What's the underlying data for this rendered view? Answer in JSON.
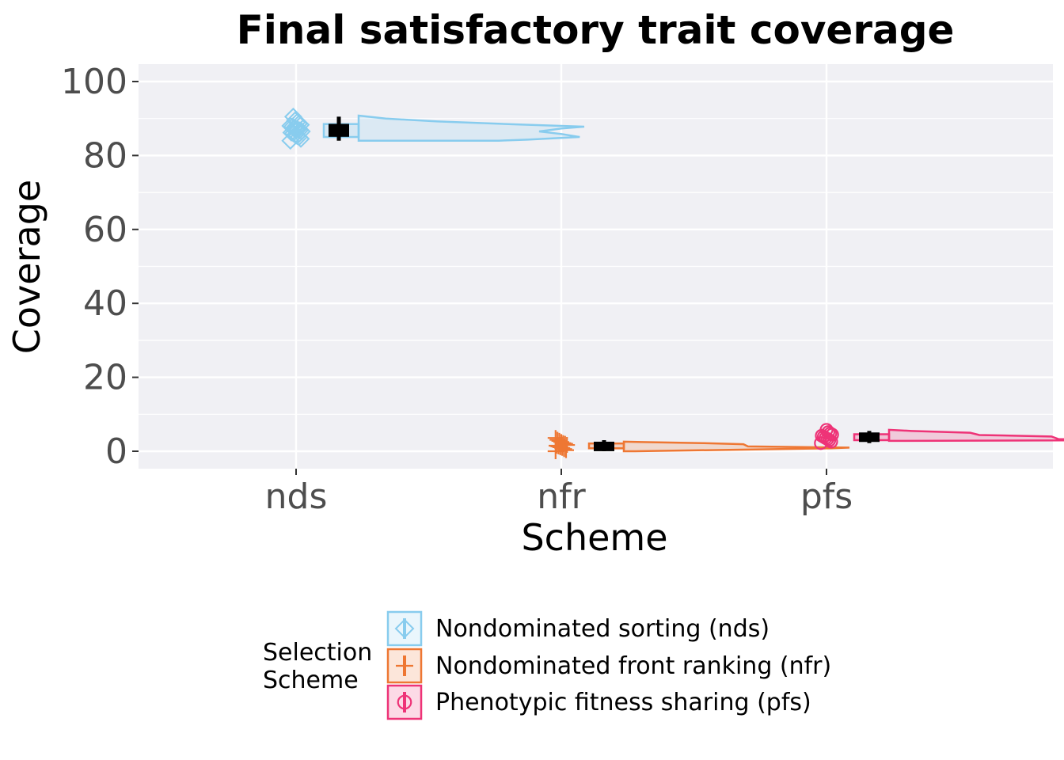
{
  "chart_data": {
    "type": "raincloud",
    "title": "Final satisfactory trait coverage",
    "xlabel": "Scheme",
    "ylabel": "Coverage",
    "categories": [
      "nds",
      "nfr",
      "pfs"
    ],
    "y_ticks": [
      0,
      20,
      40,
      60,
      80,
      100
    ],
    "ylim": [
      -4.5,
      104.5
    ],
    "grid": true,
    "legend_position": "bottom",
    "legend_title_lines": [
      "Selection",
      "Scheme"
    ],
    "series": [
      {
        "name": "Nondominated sorting (nds)",
        "category": "nds",
        "color": "#88CCEE",
        "marker": "diamond",
        "points": [
          84.0,
          84.5,
          85.0,
          85.3,
          85.6,
          86.0,
          86.2,
          86.5,
          86.8,
          87.0,
          87.2,
          87.5,
          87.8,
          88.0,
          88.3,
          88.6,
          89.0,
          89.5,
          90.5
        ],
        "box": {
          "min": 84.0,
          "q1": 85.0,
          "median": 86.8,
          "q3": 88.5,
          "max": 90.5
        },
        "density": [
          [
            84.0,
            0.62
          ],
          [
            84.3,
            0.75
          ],
          [
            85.0,
            0.98
          ],
          [
            85.8,
            0.9
          ],
          [
            86.5,
            0.8
          ],
          [
            87.3,
            0.9
          ],
          [
            87.8,
            1.0
          ],
          [
            88.4,
            0.7
          ],
          [
            89.2,
            0.35
          ],
          [
            90.0,
            0.12
          ],
          [
            90.8,
            0.0
          ]
        ]
      },
      {
        "name": "Nondominated front ranking (nfr)",
        "category": "nfr",
        "color": "#EE7733",
        "marker": "plus",
        "points": [
          0.0,
          0.3,
          0.6,
          0.9,
          1.1,
          1.3,
          1.5,
          1.7,
          2.0,
          2.2,
          2.5,
          2.8,
          3.1,
          3.6
        ],
        "box": {
          "min": 0.0,
          "q1": 0.8,
          "median": 1.3,
          "q3": 2.1,
          "max": 3.0
        },
        "density": [
          [
            0.0,
            0.05
          ],
          [
            0.8,
            0.92
          ],
          [
            1.0,
            1.0
          ],
          [
            1.3,
            0.55
          ],
          [
            1.9,
            0.53
          ],
          [
            2.2,
            0.35
          ],
          [
            2.5,
            0.08
          ],
          [
            2.6,
            0.0
          ]
        ]
      },
      {
        "name": "Phenotypic fitness sharing (pfs)",
        "category": "pfs",
        "color": "#EE3377",
        "marker": "circle",
        "points": [
          2.2,
          2.6,
          3.0,
          3.3,
          3.6,
          3.9,
          4.2,
          4.5,
          4.8,
          5.2,
          5.8
        ],
        "box": {
          "min": 2.2,
          "q1": 3.0,
          "median": 3.8,
          "q3": 4.6,
          "max": 5.5
        },
        "density": [
          [
            2.8,
            0.0
          ],
          [
            3.0,
            1.0
          ],
          [
            3.3,
            0.75
          ],
          [
            4.0,
            0.72
          ],
          [
            4.4,
            0.4
          ],
          [
            5.0,
            0.36
          ],
          [
            5.5,
            0.1
          ],
          [
            5.8,
            0.0
          ]
        ]
      }
    ]
  }
}
